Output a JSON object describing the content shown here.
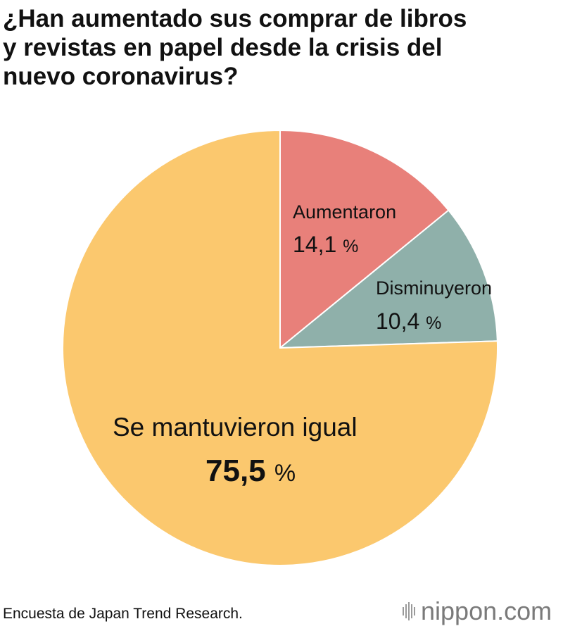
{
  "title_lines": [
    "¿Han aumentado sus comprar de libros",
    "y revistas en papel desde la crisis del",
    "nuevo coronavirus?"
  ],
  "chart_data": {
    "type": "pie",
    "title": "¿Han aumentado sus comprar de libros y revistas en papel desde la crisis del nuevo coronavirus?",
    "start": "12 o'clock, clockwise",
    "slices": [
      {
        "label": "Aumentaron",
        "value": 14.1,
        "value_text": "14,1",
        "unit": "%",
        "color": "#e8807a"
      },
      {
        "label": "Disminuyeron",
        "value": 10.4,
        "value_text": "10,4",
        "unit": "%",
        "color": "#8fb0aa"
      },
      {
        "label": "Se mantuvieron igual",
        "value": 75.5,
        "value_text": "75,5",
        "unit": "%",
        "color": "#fbc86e"
      }
    ]
  },
  "footer": {
    "source": "Encuesta de Japan Trend Research.",
    "logo_text": "nippon.com",
    "logo_icon": "nippon-logo-bars-icon"
  },
  "colors": {
    "background": "#ffffff",
    "text": "#111111",
    "logo": "#7a7a7a",
    "slice_border": "#ffffff"
  }
}
